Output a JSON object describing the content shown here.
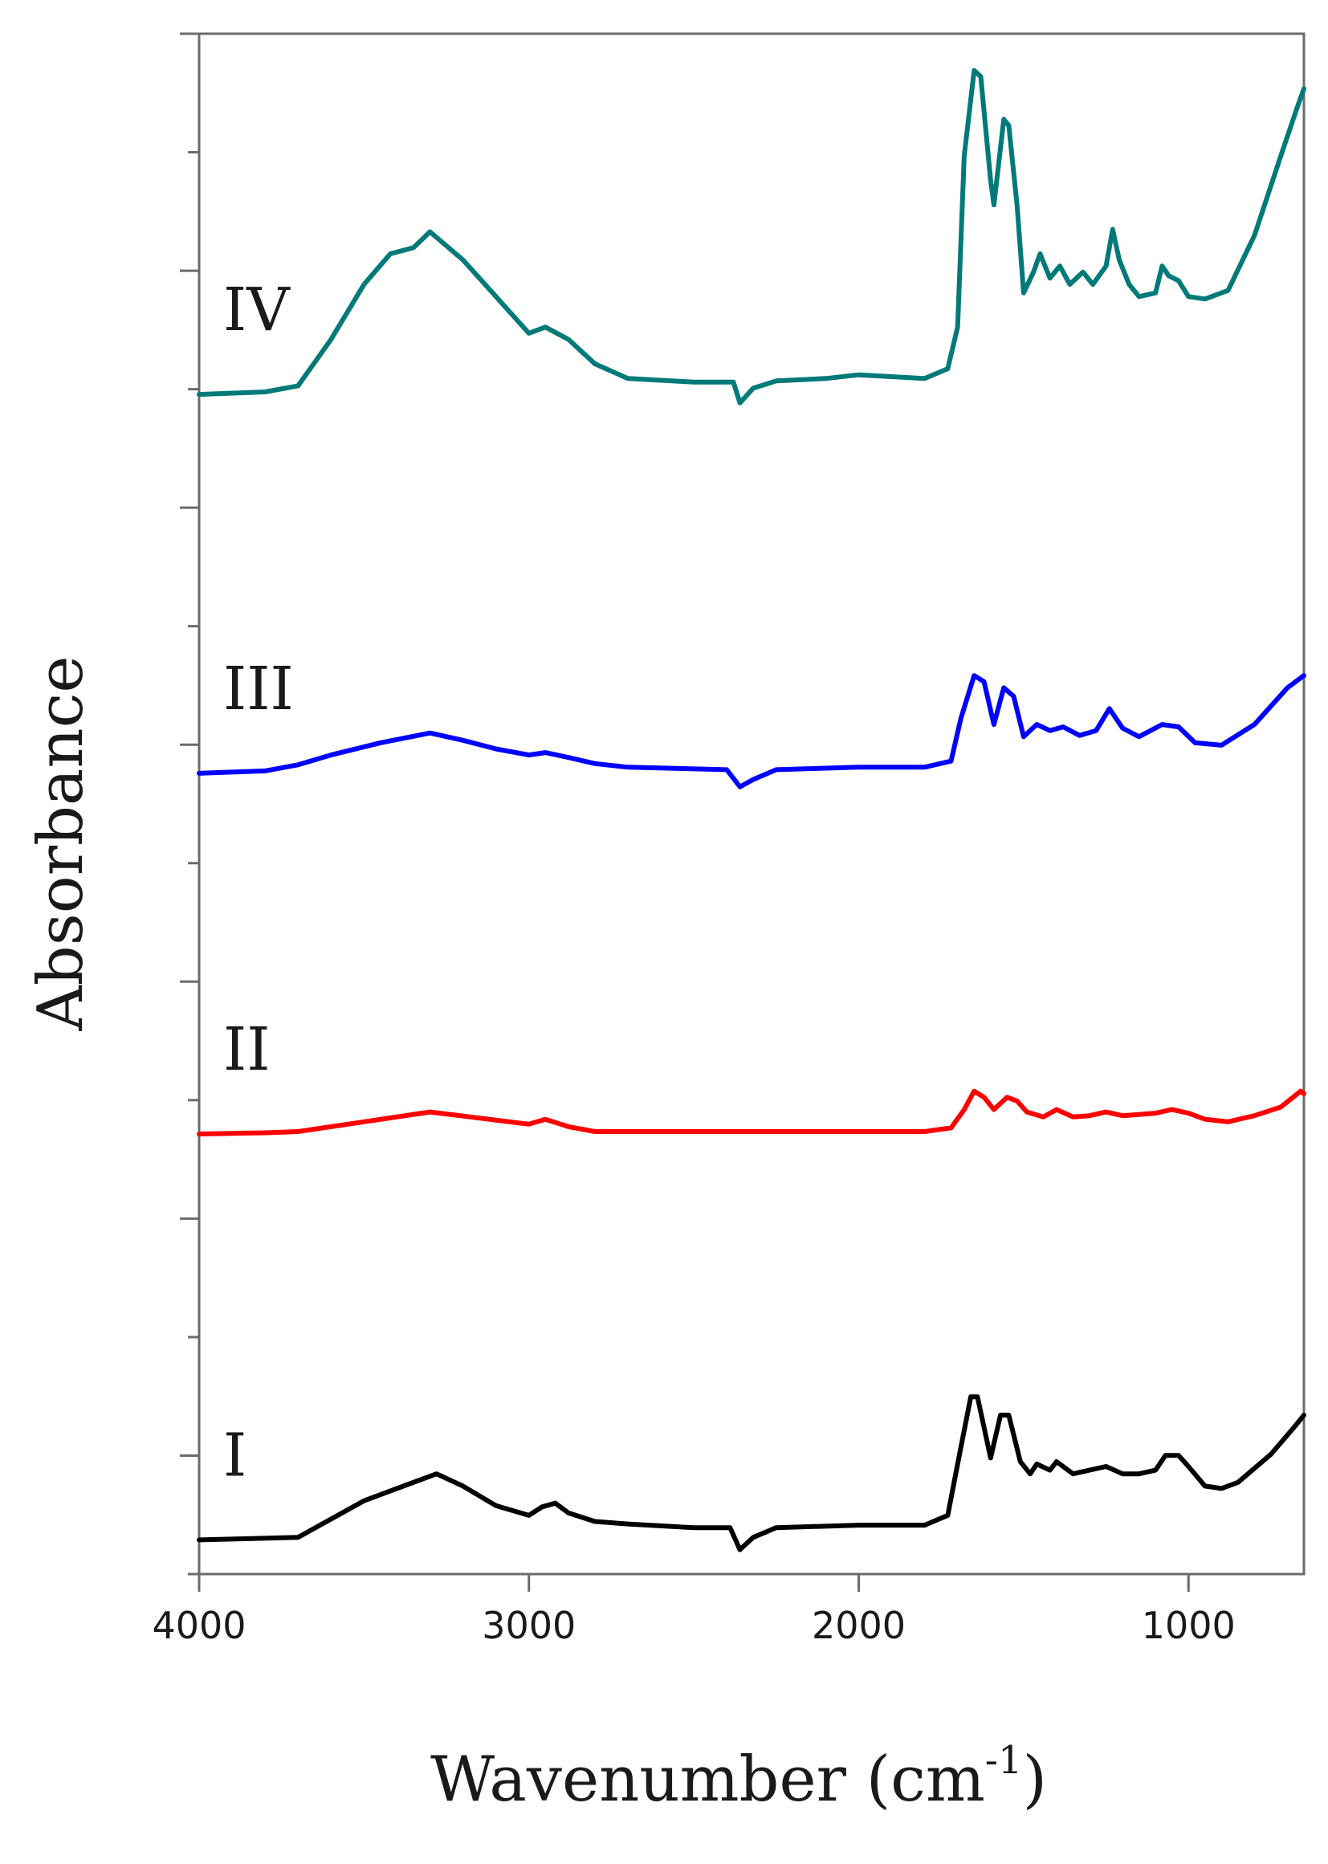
{
  "chart_data": {
    "type": "line",
    "xlabel": "Wavenumber (cm",
    "xlabel_sup": "-1",
    "xlabel_end": ")",
    "ylabel": "Absorbance",
    "xlim": [
      4000,
      650
    ],
    "x_reversed": true,
    "ylim": [
      0,
      12.6
    ],
    "xticks": [
      4000,
      3000,
      2000,
      1000
    ],
    "xtick_labels": [
      "4000",
      "3000",
      "2000",
      "1000"
    ],
    "yticks_count": 13,
    "y_tick_labels_shown": false,
    "grid": false,
    "legend": "none",
    "series": [
      {
        "name": "I",
        "color": "#000000",
        "points": [
          [
            4000,
            0.28
          ],
          [
            3850,
            0.29
          ],
          [
            3700,
            0.3
          ],
          [
            3600,
            0.45
          ],
          [
            3500,
            0.6
          ],
          [
            3400,
            0.7
          ],
          [
            3300,
            0.8
          ],
          [
            3280,
            0.82
          ],
          [
            3200,
            0.72
          ],
          [
            3100,
            0.56
          ],
          [
            3000,
            0.48
          ],
          [
            2960,
            0.55
          ],
          [
            2920,
            0.58
          ],
          [
            2880,
            0.5
          ],
          [
            2800,
            0.43
          ],
          [
            2700,
            0.41
          ],
          [
            2500,
            0.38
          ],
          [
            2390,
            0.38
          ],
          [
            2360,
            0.2
          ],
          [
            2320,
            0.3
          ],
          [
            2250,
            0.38
          ],
          [
            2000,
            0.4
          ],
          [
            1800,
            0.4
          ],
          [
            1730,
            0.48
          ],
          [
            1700,
            0.9
          ],
          [
            1660,
            1.45
          ],
          [
            1640,
            1.45
          ],
          [
            1600,
            0.95
          ],
          [
            1570,
            1.3
          ],
          [
            1545,
            1.3
          ],
          [
            1510,
            0.92
          ],
          [
            1480,
            0.82
          ],
          [
            1460,
            0.9
          ],
          [
            1420,
            0.85
          ],
          [
            1400,
            0.92
          ],
          [
            1350,
            0.82
          ],
          [
            1300,
            0.85
          ],
          [
            1250,
            0.88
          ],
          [
            1200,
            0.82
          ],
          [
            1150,
            0.82
          ],
          [
            1100,
            0.85
          ],
          [
            1070,
            0.97
          ],
          [
            1030,
            0.97
          ],
          [
            1000,
            0.88
          ],
          [
            950,
            0.72
          ],
          [
            900,
            0.7
          ],
          [
            850,
            0.75
          ],
          [
            750,
            0.98
          ],
          [
            680,
            1.2
          ],
          [
            650,
            1.3
          ]
        ]
      },
      {
        "name": "II",
        "color": "#ff0000",
        "points": [
          [
            4000,
            3.6
          ],
          [
            3800,
            3.61
          ],
          [
            3700,
            3.62
          ],
          [
            3500,
            3.7
          ],
          [
            3300,
            3.78
          ],
          [
            3150,
            3.73
          ],
          [
            3000,
            3.68
          ],
          [
            2950,
            3.72
          ],
          [
            2880,
            3.66
          ],
          [
            2800,
            3.62
          ],
          [
            2600,
            3.62
          ],
          [
            2400,
            3.62
          ],
          [
            2200,
            3.62
          ],
          [
            2000,
            3.62
          ],
          [
            1800,
            3.62
          ],
          [
            1720,
            3.65
          ],
          [
            1680,
            3.8
          ],
          [
            1650,
            3.95
          ],
          [
            1620,
            3.9
          ],
          [
            1590,
            3.8
          ],
          [
            1550,
            3.9
          ],
          [
            1520,
            3.87
          ],
          [
            1490,
            3.78
          ],
          [
            1440,
            3.74
          ],
          [
            1400,
            3.8
          ],
          [
            1350,
            3.74
          ],
          [
            1300,
            3.75
          ],
          [
            1250,
            3.78
          ],
          [
            1200,
            3.75
          ],
          [
            1100,
            3.77
          ],
          [
            1050,
            3.8
          ],
          [
            1000,
            3.77
          ],
          [
            950,
            3.72
          ],
          [
            880,
            3.7
          ],
          [
            800,
            3.75
          ],
          [
            720,
            3.82
          ],
          [
            660,
            3.95
          ],
          [
            650,
            3.93
          ]
        ]
      },
      {
        "name": "III",
        "color": "#0000ff",
        "points": [
          [
            4000,
            6.55
          ],
          [
            3800,
            6.57
          ],
          [
            3700,
            6.62
          ],
          [
            3600,
            6.7
          ],
          [
            3450,
            6.8
          ],
          [
            3300,
            6.88
          ],
          [
            3200,
            6.82
          ],
          [
            3100,
            6.75
          ],
          [
            3000,
            6.7
          ],
          [
            2950,
            6.72
          ],
          [
            2880,
            6.68
          ],
          [
            2800,
            6.63
          ],
          [
            2700,
            6.6
          ],
          [
            2400,
            6.58
          ],
          [
            2360,
            6.44
          ],
          [
            2320,
            6.5
          ],
          [
            2250,
            6.58
          ],
          [
            2000,
            6.6
          ],
          [
            1800,
            6.6
          ],
          [
            1720,
            6.65
          ],
          [
            1690,
            7.0
          ],
          [
            1650,
            7.35
          ],
          [
            1620,
            7.3
          ],
          [
            1590,
            6.95
          ],
          [
            1560,
            7.25
          ],
          [
            1530,
            7.18
          ],
          [
            1500,
            6.85
          ],
          [
            1460,
            6.95
          ],
          [
            1420,
            6.9
          ],
          [
            1380,
            6.93
          ],
          [
            1330,
            6.86
          ],
          [
            1280,
            6.9
          ],
          [
            1240,
            7.08
          ],
          [
            1200,
            6.92
          ],
          [
            1150,
            6.85
          ],
          [
            1080,
            6.95
          ],
          [
            1030,
            6.93
          ],
          [
            980,
            6.8
          ],
          [
            900,
            6.78
          ],
          [
            800,
            6.95
          ],
          [
            700,
            7.25
          ],
          [
            650,
            7.35
          ]
        ]
      },
      {
        "name": "IV",
        "color": "#007a78",
        "points": [
          [
            4000,
            9.65
          ],
          [
            3800,
            9.67
          ],
          [
            3700,
            9.72
          ],
          [
            3600,
            10.1
          ],
          [
            3500,
            10.55
          ],
          [
            3420,
            10.8
          ],
          [
            3350,
            10.85
          ],
          [
            3300,
            10.98
          ],
          [
            3200,
            10.75
          ],
          [
            3100,
            10.45
          ],
          [
            3050,
            10.3
          ],
          [
            3000,
            10.15
          ],
          [
            2950,
            10.2
          ],
          [
            2880,
            10.1
          ],
          [
            2800,
            9.9
          ],
          [
            2700,
            9.78
          ],
          [
            2500,
            9.75
          ],
          [
            2380,
            9.75
          ],
          [
            2360,
            9.58
          ],
          [
            2320,
            9.7
          ],
          [
            2250,
            9.76
          ],
          [
            2100,
            9.78
          ],
          [
            2000,
            9.81
          ],
          [
            1800,
            9.78
          ],
          [
            1730,
            9.86
          ],
          [
            1700,
            10.2
          ],
          [
            1680,
            11.6
          ],
          [
            1650,
            12.3
          ],
          [
            1630,
            12.25
          ],
          [
            1600,
            11.4
          ],
          [
            1590,
            11.2
          ],
          [
            1560,
            11.9
          ],
          [
            1545,
            11.85
          ],
          [
            1520,
            11.2
          ],
          [
            1500,
            10.48
          ],
          [
            1470,
            10.65
          ],
          [
            1450,
            10.8
          ],
          [
            1420,
            10.6
          ],
          [
            1390,
            10.7
          ],
          [
            1360,
            10.55
          ],
          [
            1320,
            10.65
          ],
          [
            1290,
            10.55
          ],
          [
            1250,
            10.7
          ],
          [
            1230,
            11.0
          ],
          [
            1210,
            10.75
          ],
          [
            1180,
            10.55
          ],
          [
            1150,
            10.45
          ],
          [
            1100,
            10.48
          ],
          [
            1080,
            10.7
          ],
          [
            1060,
            10.62
          ],
          [
            1030,
            10.58
          ],
          [
            1000,
            10.45
          ],
          [
            950,
            10.43
          ],
          [
            880,
            10.5
          ],
          [
            800,
            10.95
          ],
          [
            720,
            11.6
          ],
          [
            670,
            12.0
          ],
          [
            650,
            12.15
          ]
        ]
      }
    ]
  }
}
